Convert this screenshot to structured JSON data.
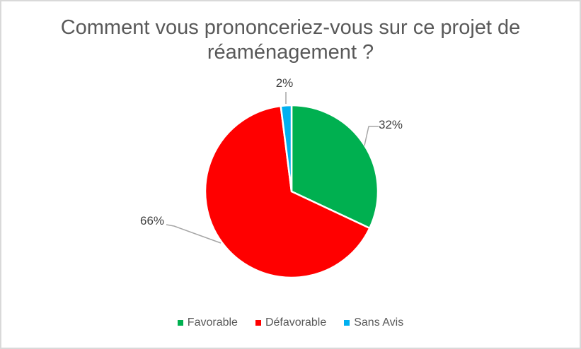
{
  "chart_data": {
    "type": "pie",
    "title": "Comment vous prononceriez-vous sur ce projet de réaménagement ?",
    "slices": [
      {
        "label": "Favorable",
        "value": 32,
        "pct_label": "32%",
        "color": "#00B050"
      },
      {
        "label": "Défavorable",
        "value": 66,
        "pct_label": "66%",
        "color": "#FF0000"
      },
      {
        "label": "Sans Avis",
        "value": 2,
        "pct_label": "2%",
        "color": "#00B0F0"
      }
    ],
    "start_angle_deg": 0,
    "direction": "clockwise",
    "legend_position": "bottom",
    "data_label_style": "outside-percent-with-leader-lines",
    "text_colors": {
      "title": "#595959",
      "data_label": "#404040",
      "legend": "#595959"
    },
    "leader_line_color": "#A6A6A6",
    "slice_border_color": "#FFFFFF",
    "frame_border_color": "#D9D9D9",
    "background": "#FFFFFF"
  }
}
